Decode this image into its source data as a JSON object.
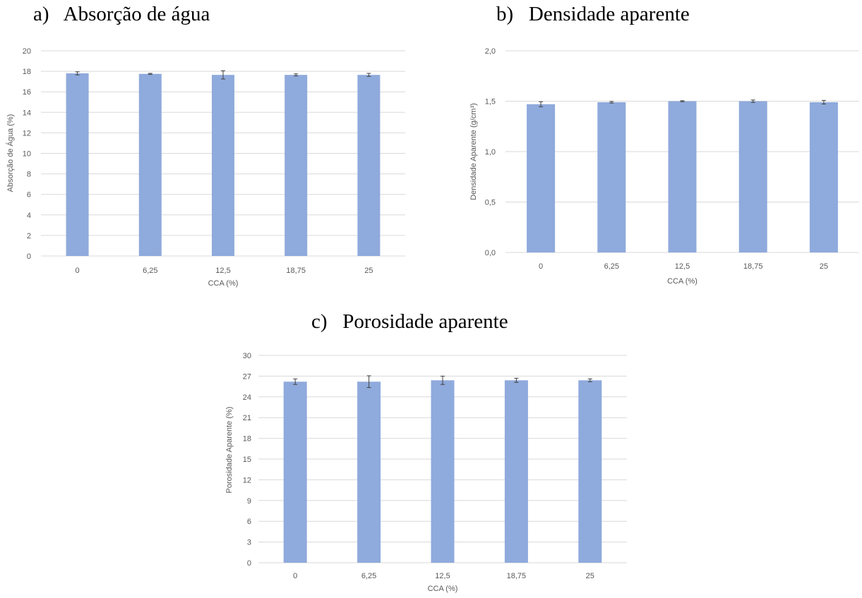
{
  "panels": {
    "a": {
      "title": "a)   Absorção de água"
    },
    "b": {
      "title": "b)   Densidade aparente"
    },
    "c": {
      "title": "c)   Porosidade aparente"
    }
  },
  "colors": {
    "bar": "#8faadc",
    "grid": "#d9d9d9",
    "text": "#595959",
    "errorbar": "#404040"
  },
  "chart_data": [
    {
      "type": "bar",
      "categories": [
        "0",
        "6,25",
        "12,5",
        "18,75",
        "25"
      ],
      "values": [
        17.8,
        17.75,
        17.65,
        17.65,
        17.65
      ],
      "errors": [
        0.15,
        0.05,
        0.4,
        0.1,
        0.15
      ],
      "title": "",
      "xlabel": "CCA (%)",
      "ylabel": "Absorção de Água (%)",
      "ylim": [
        0,
        20
      ],
      "yticks": [
        "0",
        "2",
        "4",
        "6",
        "8",
        "10",
        "12",
        "14",
        "16",
        "18",
        "20"
      ],
      "grid": true,
      "legend": "none"
    },
    {
      "type": "bar",
      "categories": [
        "0",
        "6,25",
        "12,5",
        "18,75",
        "25"
      ],
      "values": [
        1.47,
        1.49,
        1.5,
        1.5,
        1.49
      ],
      "errors": [
        0.025,
        0.008,
        0.005,
        0.012,
        0.018
      ],
      "title": "",
      "xlabel": "CCA (%)",
      "ylabel": "Densidade Aparente (g/cm³)",
      "ylim": [
        0,
        2
      ],
      "yticks": [
        "0,0",
        "0,5",
        "1,0",
        "1,5",
        "2,0"
      ],
      "grid": true,
      "legend": "none"
    },
    {
      "type": "bar",
      "categories": [
        "0",
        "6,25",
        "12,5",
        "18,75",
        "25"
      ],
      "values": [
        26.2,
        26.2,
        26.4,
        26.4,
        26.4
      ],
      "errors": [
        0.4,
        0.85,
        0.6,
        0.3,
        0.2
      ],
      "title": "",
      "xlabel": "CCA (%)",
      "ylabel": "Porosidade Aparente (%)",
      "ylim": [
        0,
        30
      ],
      "yticks": [
        "0",
        "3",
        "6",
        "9",
        "12",
        "15",
        "18",
        "21",
        "24",
        "27",
        "30"
      ],
      "grid": true,
      "legend": "none"
    }
  ]
}
